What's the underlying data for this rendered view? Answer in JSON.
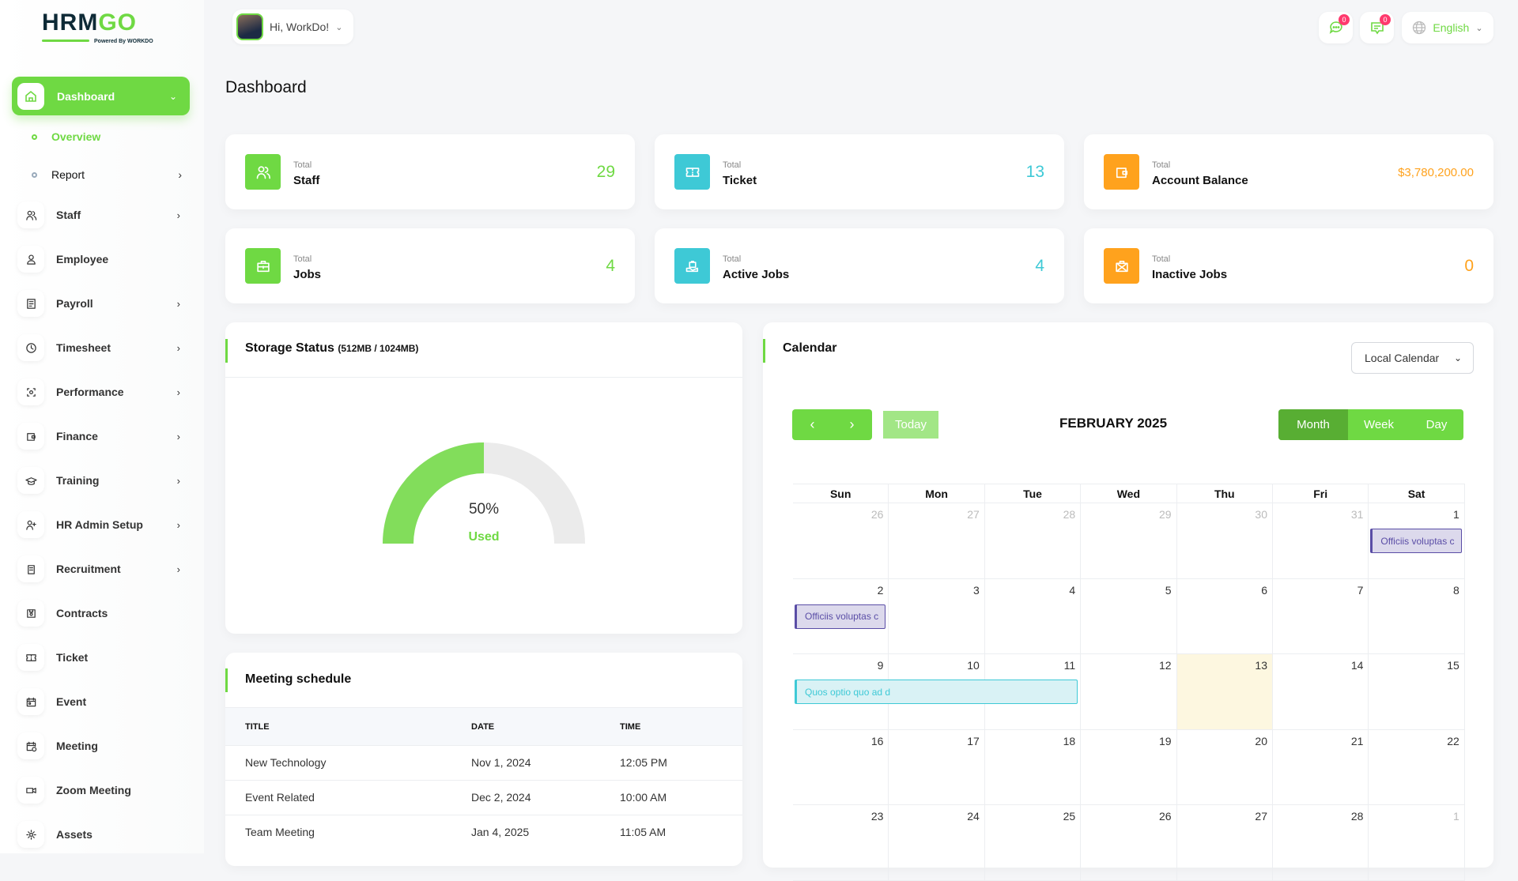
{
  "brand": {
    "logo_main": "HRM",
    "logo_accent": "GO",
    "powered": "Powered By WORKDO"
  },
  "header": {
    "greeting": "Hi, WorkDo!",
    "messages_badge": "0",
    "notes_badge": "0",
    "language": "English"
  },
  "sidebar": {
    "dashboard": "Dashboard",
    "sub": [
      {
        "label": "Overview",
        "active": true
      },
      {
        "label": "Report",
        "chevron": true
      }
    ],
    "items": [
      {
        "label": "Staff",
        "icon": "users-icon",
        "chevron": true
      },
      {
        "label": "Employee",
        "icon": "user-icon"
      },
      {
        "label": "Payroll",
        "icon": "receipt-icon",
        "chevron": true
      },
      {
        "label": "Timesheet",
        "icon": "clock-icon",
        "chevron": true
      },
      {
        "label": "Performance",
        "icon": "target-icon",
        "chevron": true
      },
      {
        "label": "Finance",
        "icon": "wallet-icon",
        "chevron": true
      },
      {
        "label": "Training",
        "icon": "graduation-cap-icon",
        "chevron": true
      },
      {
        "label": "HR Admin Setup",
        "icon": "user-plus-icon",
        "chevron": true
      },
      {
        "label": "Recruitment",
        "icon": "clipboard-icon",
        "chevron": true
      },
      {
        "label": "Contracts",
        "icon": "file-icon"
      },
      {
        "label": "Ticket",
        "icon": "ticket-icon"
      },
      {
        "label": "Event",
        "icon": "calendar-event-icon"
      },
      {
        "label": "Meeting",
        "icon": "calendar-clock-icon"
      },
      {
        "label": "Zoom Meeting",
        "icon": "video-icon"
      },
      {
        "label": "Assets",
        "icon": "asset-icon"
      }
    ]
  },
  "page_title": "Dashboard",
  "colors": {
    "green": "#6fd943",
    "cyan": "#3ec9d6",
    "orange": "#ffa21d"
  },
  "stats": [
    {
      "small": "Total",
      "name": "Staff",
      "value": "29",
      "color": "#6fd943",
      "icon": "users-icon"
    },
    {
      "small": "Total",
      "name": "Ticket",
      "value": "13",
      "color": "#3ec9d6",
      "icon": "ticket-icon"
    },
    {
      "small": "Total",
      "name": "Account Balance",
      "value": "$3,780,200.00",
      "color": "#ffa21d",
      "icon": "wallet-icon"
    },
    {
      "small": "Total",
      "name": "Jobs",
      "value": "4",
      "color": "#6fd943",
      "icon": "briefcase-icon"
    },
    {
      "small": "Total",
      "name": "Active Jobs",
      "value": "4",
      "color": "#3ec9d6",
      "icon": "hand-briefcase-icon"
    },
    {
      "small": "Total",
      "name": "Inactive Jobs",
      "value": "0",
      "color": "#ffa21d",
      "icon": "briefcase-x-icon"
    }
  ],
  "storage": {
    "title": "Storage Status",
    "detail": "(512MB / 1024MB)",
    "percent": 50,
    "percent_label": "50%",
    "used_label": "Used"
  },
  "meetings": {
    "title": "Meeting schedule",
    "columns": [
      "TITLE",
      "DATE",
      "TIME"
    ],
    "rows": [
      [
        "New Technology",
        "Nov 1, 2024",
        "12:05 PM"
      ],
      [
        "Event Related",
        "Dec 2, 2024",
        "10:00 AM"
      ],
      [
        "Team Meeting",
        "Jan 4, 2025",
        "11:05 AM"
      ]
    ]
  },
  "calendar": {
    "title": "Calendar",
    "source": "Local Calendar",
    "today_label": "Today",
    "month_title": "FEBRUARY 2025",
    "views": [
      "Month",
      "Week",
      "Day"
    ],
    "active_view": "Month",
    "weekdays": [
      "Sun",
      "Mon",
      "Tue",
      "Wed",
      "Thu",
      "Fri",
      "Sat"
    ],
    "today": "13",
    "weeks": [
      [
        {
          "d": "26",
          "o": true
        },
        {
          "d": "27",
          "o": true
        },
        {
          "d": "28",
          "o": true
        },
        {
          "d": "29",
          "o": true
        },
        {
          "d": "30",
          "o": true
        },
        {
          "d": "31",
          "o": true
        },
        {
          "d": "1"
        }
      ],
      [
        {
          "d": "2"
        },
        {
          "d": "3"
        },
        {
          "d": "4"
        },
        {
          "d": "5"
        },
        {
          "d": "6"
        },
        {
          "d": "7"
        },
        {
          "d": "8"
        }
      ],
      [
        {
          "d": "9"
        },
        {
          "d": "10"
        },
        {
          "d": "11"
        },
        {
          "d": "12"
        },
        {
          "d": "13"
        },
        {
          "d": "14"
        },
        {
          "d": "15"
        }
      ],
      [
        {
          "d": "16"
        },
        {
          "d": "17"
        },
        {
          "d": "18"
        },
        {
          "d": "19"
        },
        {
          "d": "20"
        },
        {
          "d": "21"
        },
        {
          "d": "22"
        }
      ],
      [
        {
          "d": "23"
        },
        {
          "d": "24"
        },
        {
          "d": "25"
        },
        {
          "d": "26"
        },
        {
          "d": "27"
        },
        {
          "d": "28"
        },
        {
          "d": "1",
          "o": true
        }
      ]
    ],
    "events": [
      {
        "title": "Officiis voluptas c",
        "week": 0,
        "start": 6,
        "span": 1,
        "color": "purple"
      },
      {
        "title": "Officiis voluptas c",
        "week": 1,
        "start": 0,
        "span": 1,
        "color": "purple"
      },
      {
        "title": "Quos optio quo ad d",
        "week": 2,
        "start": 0,
        "span": 3,
        "color": "cyan"
      }
    ]
  }
}
